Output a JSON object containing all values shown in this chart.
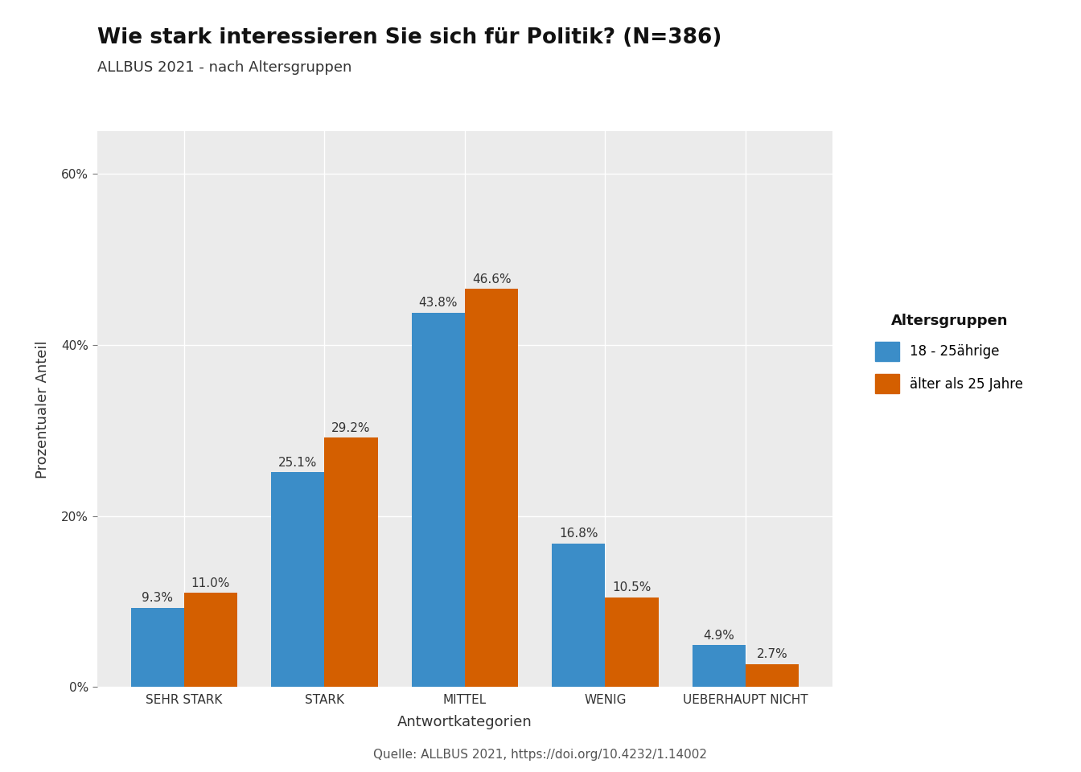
{
  "title": "Wie stark interessieren Sie sich für Politik? (N=386)",
  "subtitle": "ALLBUS 2021 - nach Altersgruppen",
  "xlabel": "Antwortkategorien",
  "ylabel": "Prozentualer Anteil",
  "caption": "Quelle: ALLBUS 2021, https://doi.org/10.4232/1.14002",
  "categories": [
    "SEHR STARK",
    "STARK",
    "MITTEL",
    "WENIG",
    "UEBERHAUPT NICHT"
  ],
  "group1_label": "18 - 25ährige",
  "group2_label": "älter als 25 Jahre",
  "group1_values": [
    9.3,
    25.1,
    43.8,
    16.8,
    4.9
  ],
  "group2_values": [
    11.0,
    29.2,
    46.6,
    10.5,
    2.7
  ],
  "group1_color": "#3B8DC8",
  "group2_color": "#D45F00",
  "legend_title": "Altersgruppen",
  "ylim_max": 65,
  "yticks": [
    0,
    20,
    40,
    60
  ],
  "ytick_labels": [
    "0%",
    "20%",
    "40%",
    "60%"
  ],
  "background_color": "#E8E8E8",
  "plot_bg_color": "#EBEBEB",
  "bar_width": 0.38,
  "title_fontsize": 19,
  "subtitle_fontsize": 13,
  "axis_label_fontsize": 13,
  "tick_fontsize": 11,
  "annotation_fontsize": 11,
  "legend_fontsize": 12,
  "legend_title_fontsize": 13,
  "caption_fontsize": 11
}
